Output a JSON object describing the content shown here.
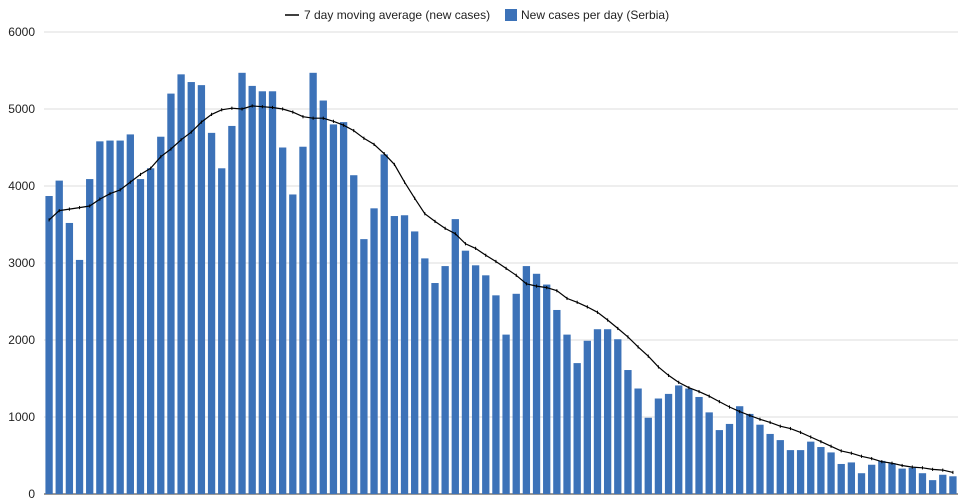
{
  "chart_data": {
    "type": "bar",
    "title": "",
    "xlabel": "",
    "ylabel": "",
    "ylim": [
      0,
      6000
    ],
    "yticks": [
      0,
      1000,
      2000,
      3000,
      4000,
      5000,
      6000
    ],
    "grid": true,
    "legend_position": "top-center",
    "legend": [
      {
        "label": "7 day moving average (new cases)",
        "kind": "line",
        "color": "#000000"
      },
      {
        "label": "New cases per day (Serbia)",
        "kind": "bar",
        "color": "#3c72b8"
      }
    ],
    "series": [
      {
        "name": "New cases per day (Serbia)",
        "type": "bar",
        "color": "#3c72b8",
        "values": [
          3870,
          4070,
          3520,
          3040,
          4090,
          4580,
          4590,
          4590,
          4670,
          4090,
          4230,
          4640,
          5200,
          5450,
          5350,
          5310,
          4690,
          4230,
          4780,
          5470,
          5300,
          5230,
          5230,
          4500,
          3890,
          4510,
          5470,
          5110,
          4800,
          4830,
          4140,
          3310,
          3710,
          4410,
          3610,
          3620,
          3410,
          3060,
          2740,
          2960,
          3570,
          3160,
          2970,
          2840,
          2580,
          2070,
          2600,
          2960,
          2860,
          2720,
          2390,
          2070,
          1700,
          1990,
          2140,
          2140,
          2010,
          1610,
          1370,
          990,
          1240,
          1300,
          1410,
          1370,
          1260,
          1060,
          830,
          910,
          1140,
          1040,
          900,
          780,
          700,
          570,
          570,
          680,
          610,
          540,
          390,
          410,
          270,
          380,
          430,
          400,
          330,
          340,
          270,
          180,
          250,
          230
        ]
      },
      {
        "name": "7 day moving average (new cases)",
        "type": "line",
        "color": "#000000",
        "values": [
          3560,
          3680,
          3700,
          3720,
          3740,
          3830,
          3900,
          3950,
          4050,
          4150,
          4230,
          4380,
          4480,
          4600,
          4700,
          4830,
          4930,
          4990,
          5010,
          5000,
          5040,
          5030,
          5020,
          5000,
          4960,
          4900,
          4880,
          4880,
          4840,
          4790,
          4720,
          4620,
          4540,
          4420,
          4280,
          4050,
          3840,
          3640,
          3540,
          3450,
          3380,
          3250,
          3190,
          3100,
          3020,
          2930,
          2840,
          2730,
          2700,
          2680,
          2640,
          2540,
          2490,
          2430,
          2360,
          2260,
          2150,
          2040,
          1910,
          1790,
          1650,
          1540,
          1450,
          1380,
          1330,
          1270,
          1200,
          1130,
          1070,
          1020,
          970,
          930,
          880,
          850,
          800,
          740,
          680,
          620,
          560,
          530,
          490,
          460,
          420,
          400,
          370,
          350,
          340,
          320,
          310,
          280
        ]
      }
    ]
  }
}
